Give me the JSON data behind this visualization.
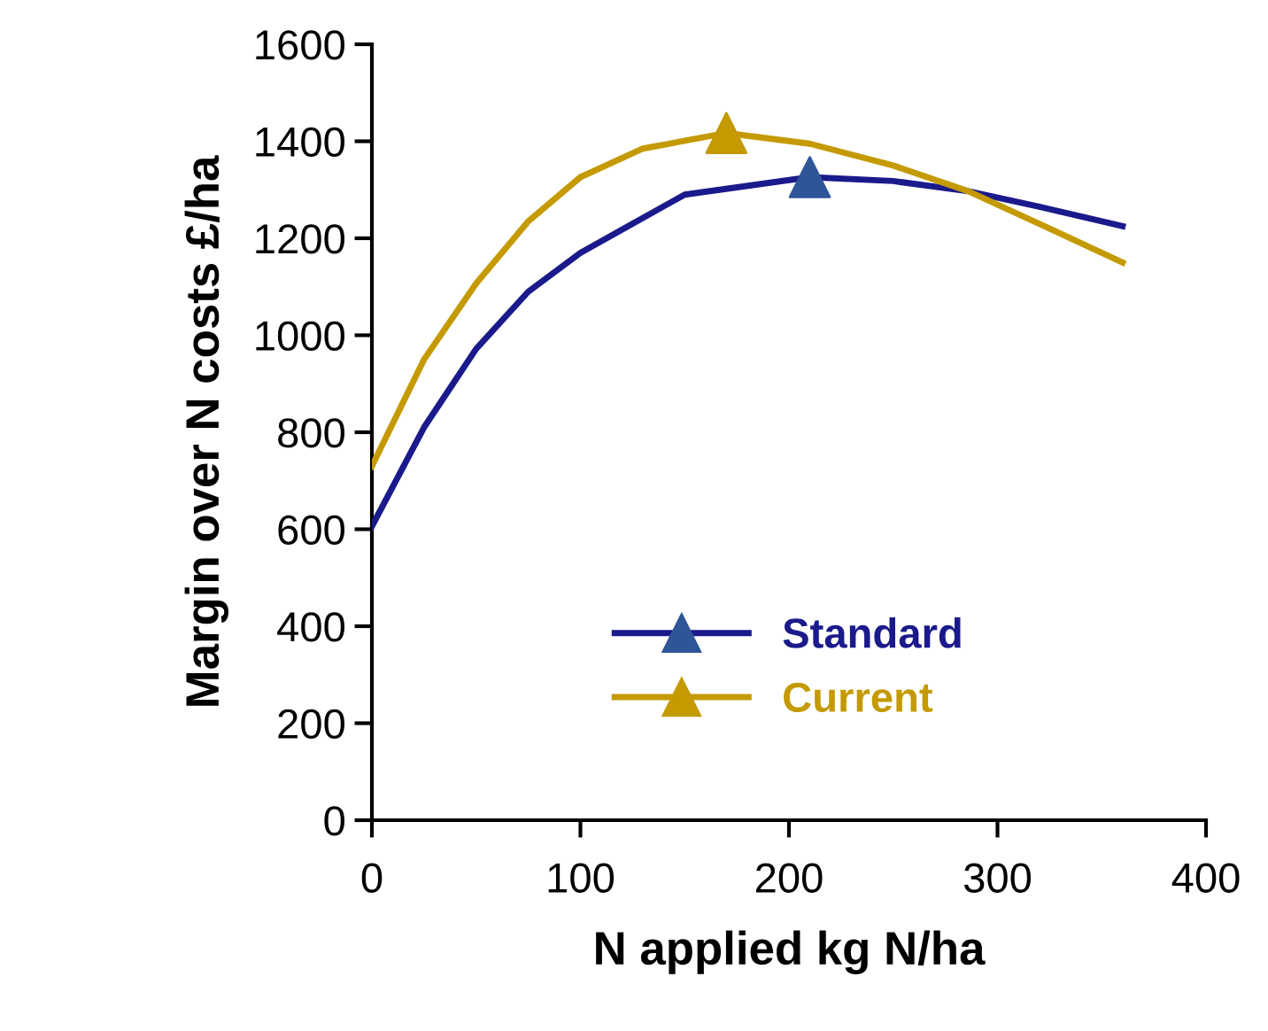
{
  "chart_data": {
    "type": "line",
    "xlabel": "N applied kg N/ha",
    "ylabel": "Margin over N costs £/ha",
    "xlim": [
      0,
      400
    ],
    "xticks": [
      0,
      100,
      200,
      300,
      400
    ],
    "ylim": [
      0,
      1600
    ],
    "yticks": [
      0,
      200,
      400,
      600,
      800,
      1000,
      1200,
      1400,
      1600
    ],
    "grid": false,
    "legend": "bottom",
    "line_style": "solid",
    "series": [
      {
        "name": "Standard",
        "color": "#1a1a8c",
        "x": [
          0,
          25,
          50,
          75,
          100,
          150,
          210,
          250,
          286,
          320,
          360
        ],
        "values": [
          606,
          810,
          972,
          1090,
          1170,
          1290,
          1326,
          1318,
          1297,
          1265,
          1225
        ]
      },
      {
        "name": "Current",
        "color": "#c49a00",
        "x": [
          0,
          25,
          50,
          75,
          100,
          130,
          170,
          210,
          250,
          286,
          320,
          360
        ],
        "values": [
          730,
          950,
          1107,
          1235,
          1326,
          1385,
          1417,
          1395,
          1350,
          1297,
          1230,
          1150
        ]
      },
      {
        "type": "scatter",
        "marker": "triangle",
        "color": "#2e5597",
        "x": [
          210
        ],
        "values": [
          1326
        ]
      },
      {
        "type": "scatter",
        "marker": "triangle",
        "color": "#c49a00",
        "x": [
          170
        ],
        "values": [
          1417
        ]
      }
    ]
  }
}
